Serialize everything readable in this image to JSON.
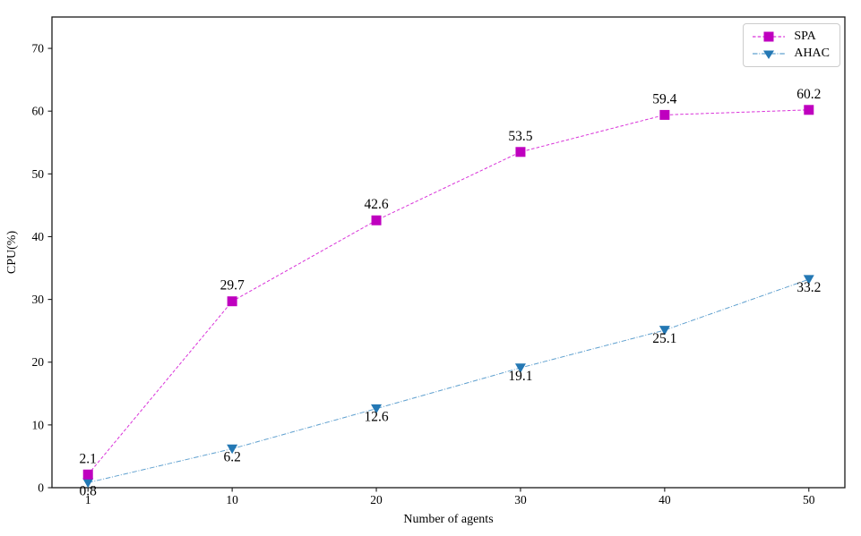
{
  "figure": {
    "background": "#ffffff"
  },
  "chart_data": {
    "type": "line",
    "title": "",
    "xlabel": "Number of agents",
    "ylabel": "CPU(%)",
    "categories": [
      "1",
      "10",
      "20",
      "30",
      "40",
      "50"
    ],
    "yticks": [
      0,
      10,
      20,
      30,
      40,
      50,
      60,
      70
    ],
    "ylim": [
      0,
      75
    ],
    "grid": false,
    "legend_position": "upper-right",
    "axis_color": "#1a1a1a",
    "series": [
      {
        "name": "SPA",
        "values": [
          2.1,
          29.7,
          42.6,
          53.5,
          59.4,
          60.2
        ],
        "point_labels": [
          "2.1",
          "29.7",
          "42.6",
          "53.5",
          "59.4",
          "60.2"
        ],
        "marker": "square",
        "marker_color": "#bf00bf",
        "line_color": "#d933d9",
        "line_style": "dashed",
        "label_position": "above"
      },
      {
        "name": "AHAC",
        "values": [
          0.8,
          6.2,
          12.6,
          19.1,
          25.1,
          33.2
        ],
        "point_labels": [
          "0.8",
          "6.2",
          "12.6",
          "19.1",
          "25.1",
          "33.2"
        ],
        "marker": "triangle-down",
        "marker_color": "#2478b4",
        "line_color": "#5fa0cf",
        "line_style": "dashdot",
        "label_position": "below"
      }
    ]
  }
}
